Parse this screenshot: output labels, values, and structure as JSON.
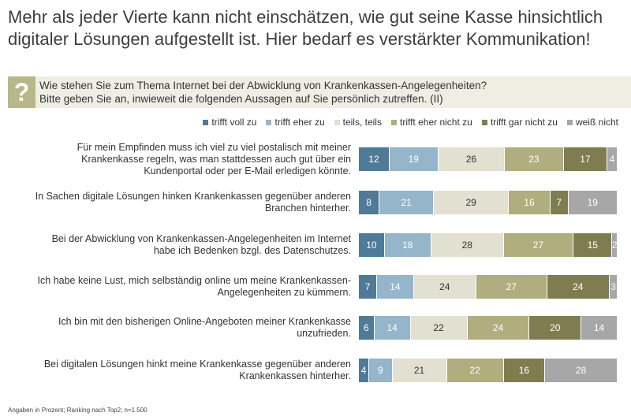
{
  "headline": "Mehr als jeder Vierte kann nicht einschätzen, wie gut seine Kasse hinsichtlich digitaler Lösungen aufgestellt ist. Hier bedarf es verstärkter Kommunikation!",
  "question": {
    "icon": "?",
    "line1": "Wie stehen Sie zum Thema Internet bei der Abwicklung von Krankenkassen-Angelegenheiten?",
    "line2": "Bitte geben Sie an, inwieweit die folgenden Aussagen auf Sie persönlich zutreffen. (II)"
  },
  "footnote": "Angaben in Prozent; Ranking nach Top2; n=1.500",
  "chart_data": {
    "type": "bar",
    "orientation": "horizontal-stacked-100",
    "title": "",
    "xlabel": "",
    "ylabel": "",
    "categories": [
      "Für mein Empfinden muss ich viel zu viel postalisch mit meiner Krankenkasse regeln, was man stattdessen auch gut über ein Kundenportal oder per E-Mail erledigen könnte.",
      "In Sachen digitale Lösungen hinken Krankenkassen gegenüber anderen Branchen hinterher.",
      "Bei der Abwicklung von Krankenkassen-Angelegenheiten im Internet habe ich Bedenken bzgl. des Datenschutzes.",
      "Ich habe keine Lust, mich selbständig online um meine Krankenkassen-Angelegenheiten zu kümmern.",
      "Ich bin mit den bisherigen Online-Angeboten meiner Krankenkasse unzufrieden.",
      "Bei digitalen Lösungen hinkt meine Krankenkasse gegenüber anderen Krankenkassen hinterher."
    ],
    "series": [
      {
        "name": "trifft voll zu",
        "color": "#4f7a98",
        "text_color": "#ffffff",
        "values": [
          12,
          8,
          10,
          7,
          6,
          4
        ]
      },
      {
        "name": "trifft eher zu",
        "color": "#95b5cb",
        "text_color": "#ffffff",
        "values": [
          19,
          21,
          18,
          14,
          14,
          9
        ]
      },
      {
        "name": "teils, teils",
        "color": "#e2e0d0",
        "text_color": "#333333",
        "values": [
          26,
          29,
          28,
          24,
          22,
          21
        ]
      },
      {
        "name": "trifft eher nicht zu",
        "color": "#b0ad7e",
        "text_color": "#ffffff",
        "values": [
          23,
          16,
          27,
          27,
          24,
          22
        ]
      },
      {
        "name": "trifft gar nicht zu",
        "color": "#7f7d50",
        "text_color": "#ffffff",
        "values": [
          17,
          7,
          15,
          24,
          20,
          16
        ]
      },
      {
        "name": "weiß nicht",
        "color": "#a7a7a7",
        "text_color": "#ffffff",
        "values": [
          4,
          19,
          2,
          3,
          14,
          28
        ]
      }
    ],
    "legend": "top-right"
  }
}
